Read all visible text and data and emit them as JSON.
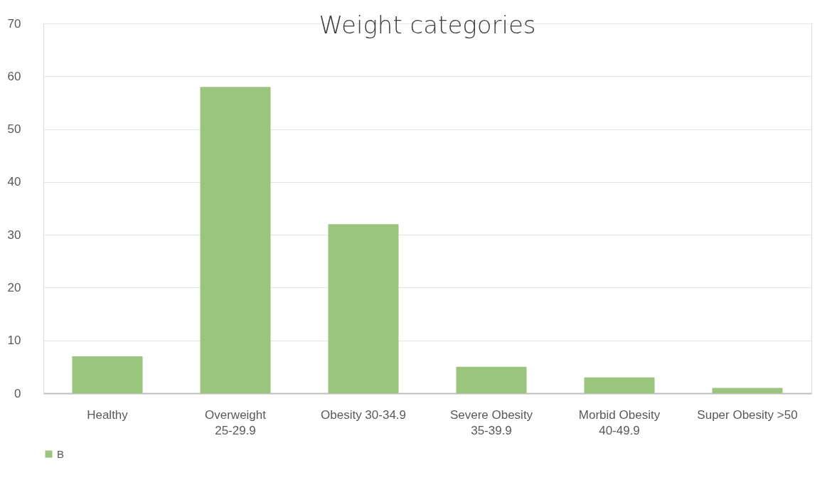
{
  "chart_data": {
    "type": "bar",
    "title": "Weight categories",
    "categories": [
      "Healthy",
      "Overweight 25-29.9",
      "Obesity 30-34.9",
      "Severe Obesity 35-39.9",
      "Morbid Obesity 40-49.9",
      "Super Obesity >50"
    ],
    "series": [
      {
        "name": "B",
        "color": "#9bc47e",
        "values": [
          7,
          58,
          32,
          5,
          3,
          1
        ]
      }
    ],
    "ylim": [
      0,
      70
    ],
    "yticks": [
      0,
      10,
      20,
      30,
      40,
      50,
      60,
      70
    ],
    "grid": "y",
    "legend": "bottom"
  }
}
